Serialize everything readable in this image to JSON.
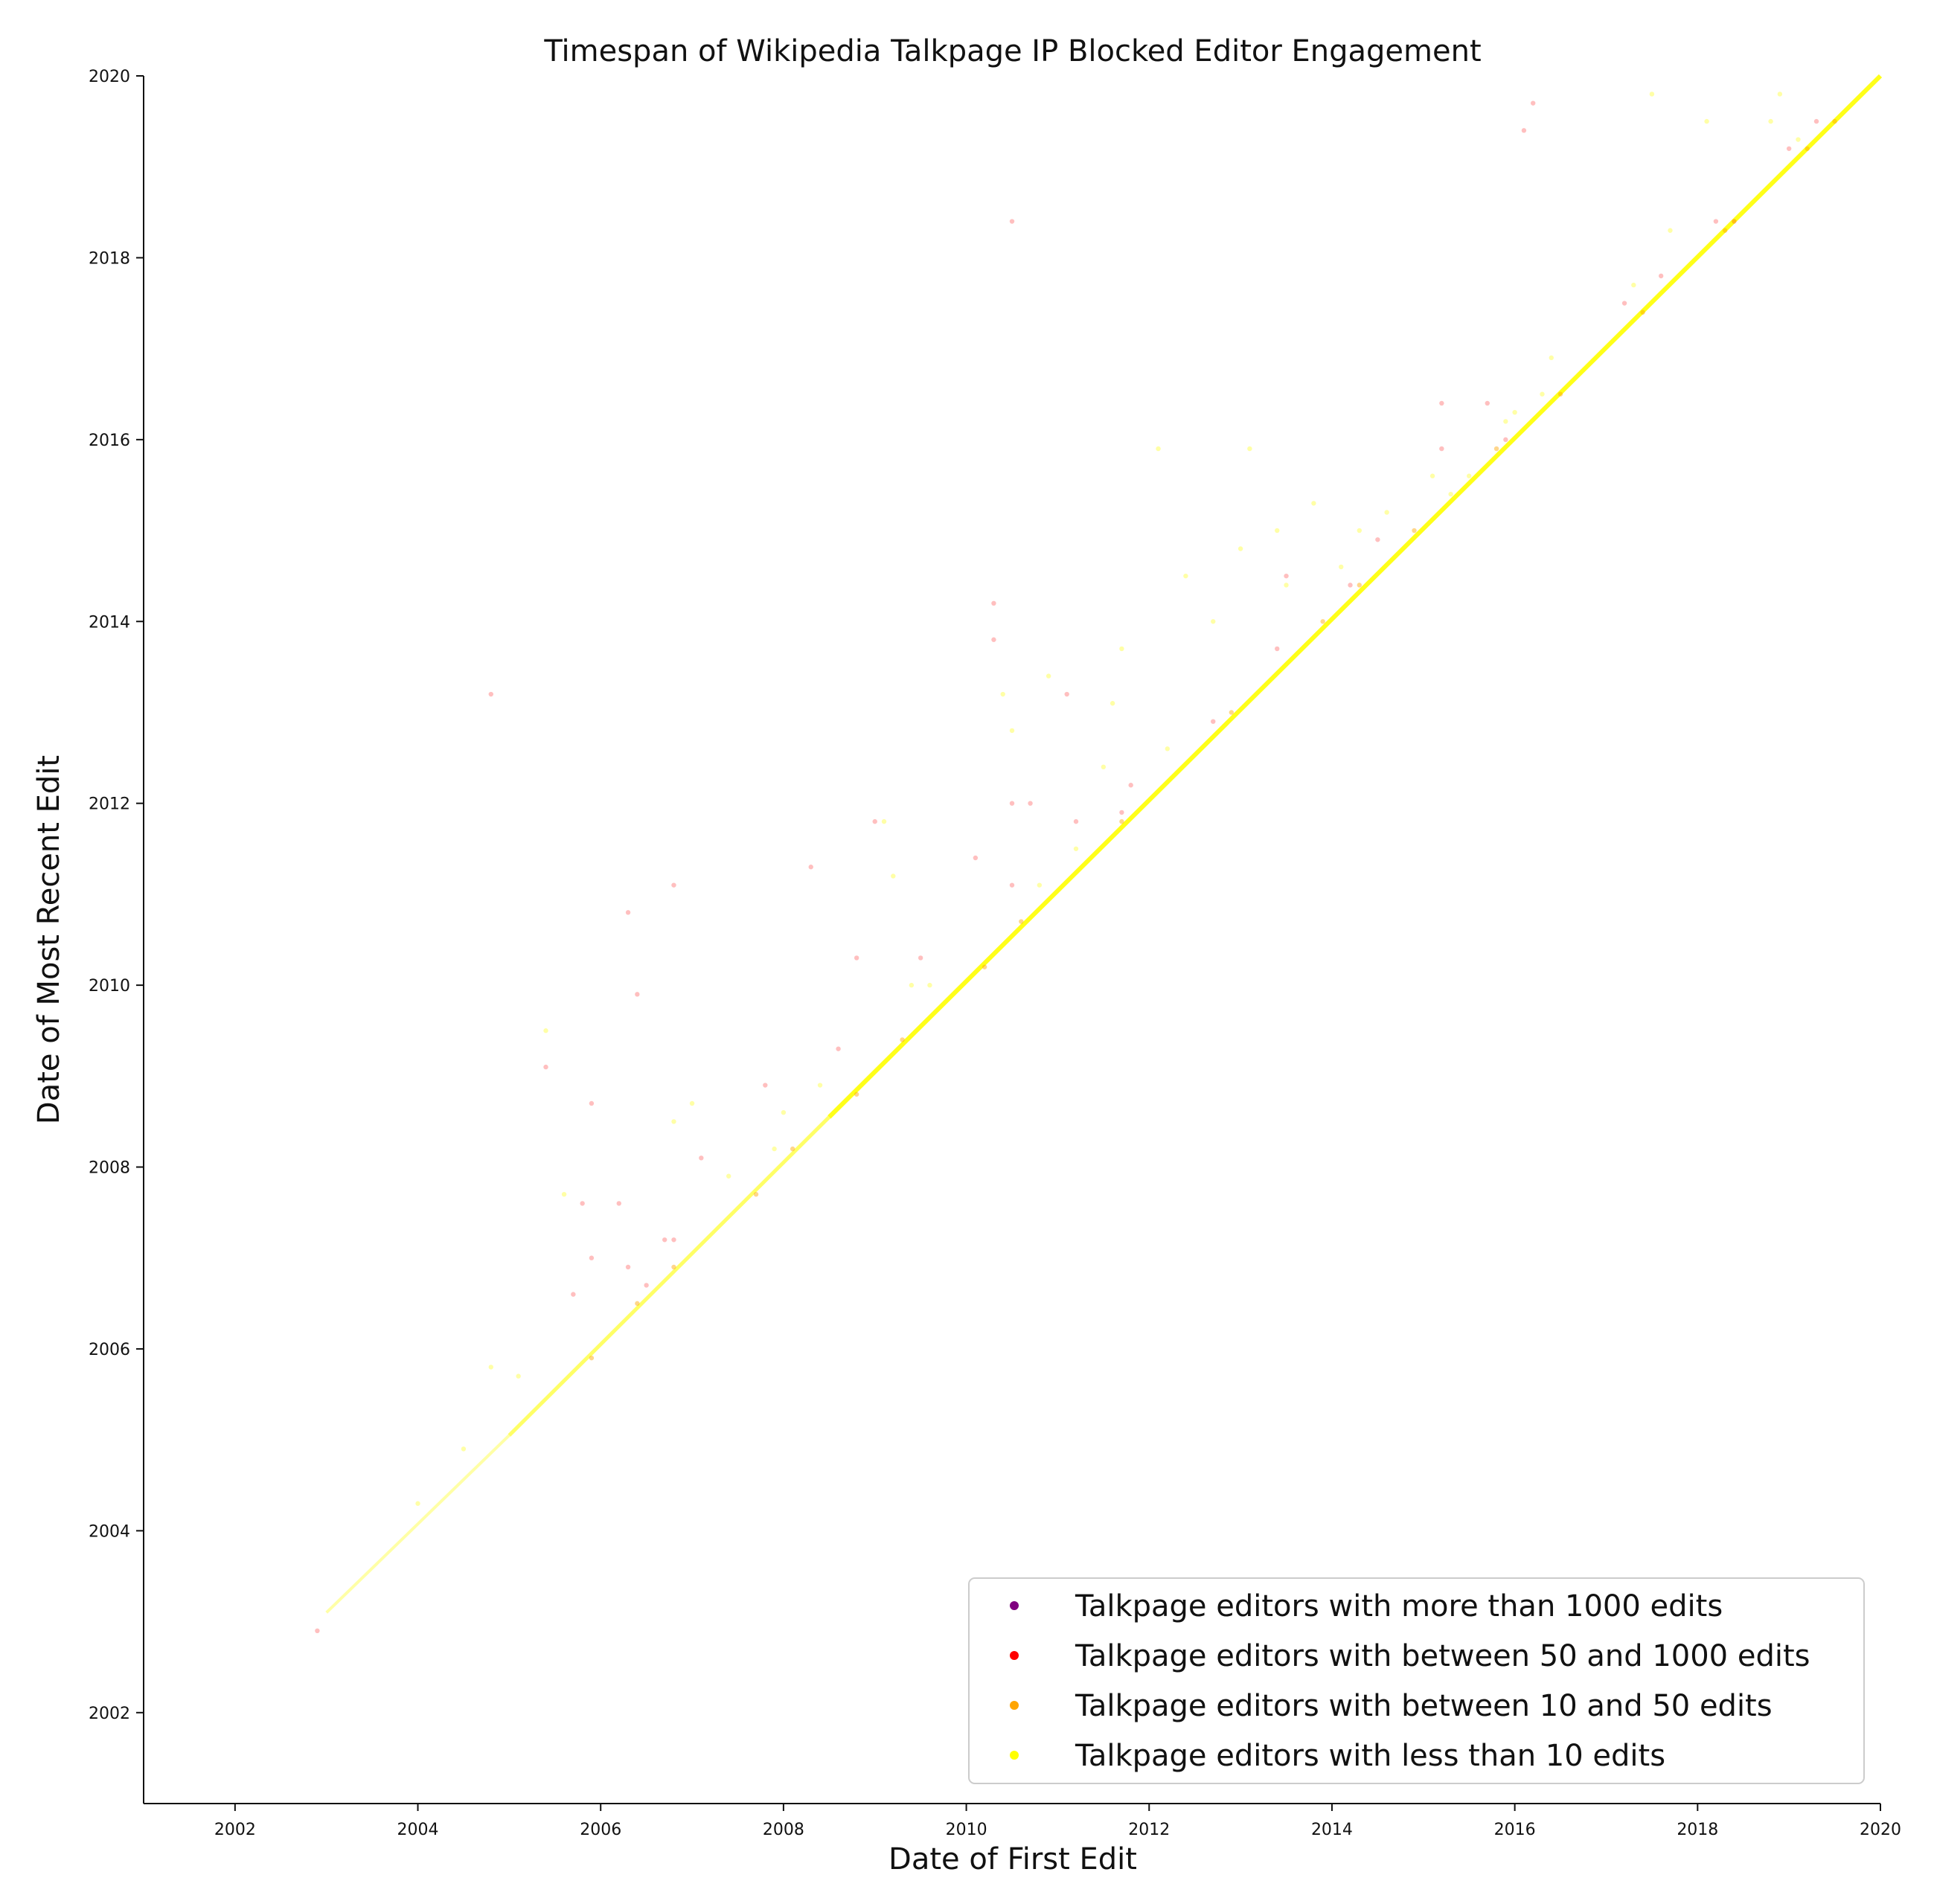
{
  "chart_data": {
    "type": "scatter",
    "title": "Timespan of Wikipedia Talkpage IP Blocked Editor Engagement",
    "xlabel": "Date of First Edit",
    "ylabel": "Date of Most Recent Edit",
    "xlim": [
      2001.0,
      2020.0
    ],
    "ylim": [
      2001.0,
      2020.0
    ],
    "xticks": [
      "2002",
      "2004",
      "2006",
      "2008",
      "2010",
      "2012",
      "2014",
      "2016",
      "2018",
      "2020"
    ],
    "yticks": [
      "2002",
      "2004",
      "2006",
      "2008",
      "2010",
      "2012",
      "2014",
      "2016",
      "2018",
      "2020"
    ],
    "grid": false,
    "legend_position": "lower-right",
    "series": [
      {
        "name": "Talkpage editors with more than 1000 edits",
        "color": "#800080",
        "points": []
      },
      {
        "name": "Talkpage editors with between 50 and 1000 edits",
        "color": "#ff0000",
        "points": [
          [
            2002.9,
            2002.9
          ],
          [
            2004.8,
            2013.2
          ],
          [
            2005.4,
            2009.1
          ],
          [
            2005.8,
            2007.6
          ],
          [
            2005.9,
            2008.7
          ],
          [
            2005.7,
            2006.6
          ],
          [
            2006.3,
            2010.8
          ],
          [
            2006.4,
            2009.9
          ],
          [
            2006.2,
            2007.6
          ],
          [
            2006.5,
            2006.7
          ],
          [
            2006.8,
            2011.1
          ],
          [
            2006.8,
            2007.2
          ],
          [
            2007.1,
            2008.1
          ],
          [
            2007.8,
            2008.9
          ],
          [
            2008.3,
            2011.3
          ],
          [
            2008.8,
            2010.3
          ],
          [
            2008.6,
            2009.3
          ],
          [
            2009.0,
            2011.8
          ],
          [
            2009.5,
            2010.3
          ],
          [
            2010.1,
            2011.4
          ],
          [
            2010.3,
            2014.2
          ],
          [
            2010.3,
            2013.8
          ],
          [
            2010.5,
            2018.4
          ],
          [
            2010.5,
            2012.0
          ],
          [
            2010.7,
            2012.0
          ],
          [
            2010.5,
            2011.1
          ],
          [
            2011.1,
            2013.2
          ],
          [
            2011.2,
            2011.8
          ],
          [
            2011.7,
            2011.9
          ],
          [
            2011.8,
            2012.2
          ],
          [
            2012.7,
            2012.9
          ],
          [
            2013.4,
            2013.7
          ],
          [
            2013.5,
            2014.5
          ],
          [
            2014.2,
            2014.4
          ],
          [
            2015.2,
            2015.9
          ],
          [
            2015.2,
            2016.4
          ],
          [
            2015.7,
            2016.4
          ],
          [
            2016.1,
            2019.4
          ],
          [
            2016.2,
            2019.7
          ],
          [
            2017.2,
            2017.5
          ],
          [
            2017.6,
            2017.8
          ],
          [
            2018.2,
            2018.4
          ],
          [
            2019.3,
            2019.5
          ],
          [
            2006.7,
            2007.2
          ],
          [
            2005.9,
            2007.0
          ],
          [
            2006.3,
            2006.9
          ],
          [
            2014.5,
            2014.9
          ],
          [
            2015.9,
            2016.0
          ],
          [
            2018.4,
            2018.4
          ],
          [
            2019.0,
            2019.2
          ]
        ]
      },
      {
        "name": "Talkpage editors with between 10 and 50 edits",
        "color": "#ffa500",
        "points": [
          [
            2006.4,
            2006.5
          ],
          [
            2006.8,
            2006.9
          ],
          [
            2007.7,
            2007.7
          ],
          [
            2008.1,
            2008.2
          ],
          [
            2009.3,
            2009.4
          ],
          [
            2010.2,
            2010.2
          ],
          [
            2010.6,
            2010.7
          ],
          [
            2011.7,
            2011.8
          ],
          [
            2012.9,
            2013.0
          ],
          [
            2013.9,
            2014.0
          ],
          [
            2014.3,
            2014.4
          ],
          [
            2014.9,
            2015.0
          ],
          [
            2015.8,
            2015.9
          ],
          [
            2016.5,
            2016.5
          ],
          [
            2017.4,
            2017.4
          ],
          [
            2018.3,
            2018.3
          ],
          [
            2019.2,
            2019.2
          ],
          [
            2019.5,
            2019.5
          ],
          [
            2005.9,
            2005.9
          ],
          [
            2008.8,
            2008.8
          ]
        ]
      },
      {
        "name": "Talkpage editors with less than 10 edits",
        "color": "#ffff00",
        "points": [
          [
            2005.4,
            2009.5
          ],
          [
            2005.6,
            2007.7
          ],
          [
            2004.8,
            2005.8
          ],
          [
            2005.1,
            2005.7
          ],
          [
            2006.8,
            2008.5
          ],
          [
            2007.0,
            2008.7
          ],
          [
            2008.0,
            2008.6
          ],
          [
            2009.2,
            2011.2
          ],
          [
            2009.4,
            2010.0
          ],
          [
            2009.1,
            2011.8
          ],
          [
            2010.4,
            2013.2
          ],
          [
            2010.5,
            2012.8
          ],
          [
            2010.9,
            2013.4
          ],
          [
            2011.2,
            2011.5
          ],
          [
            2011.5,
            2012.4
          ],
          [
            2011.6,
            2013.1
          ],
          [
            2011.7,
            2013.7
          ],
          [
            2012.1,
            2015.9
          ],
          [
            2012.4,
            2014.5
          ],
          [
            2012.7,
            2014.0
          ],
          [
            2013.0,
            2014.8
          ],
          [
            2013.1,
            2015.9
          ],
          [
            2013.4,
            2015.0
          ],
          [
            2013.5,
            2014.4
          ],
          [
            2013.8,
            2015.3
          ],
          [
            2014.3,
            2015.0
          ],
          [
            2014.6,
            2015.2
          ],
          [
            2015.1,
            2015.6
          ],
          [
            2015.3,
            2015.4
          ],
          [
            2015.5,
            2015.6
          ],
          [
            2015.9,
            2016.2
          ],
          [
            2016.3,
            2016.5
          ],
          [
            2016.4,
            2016.9
          ],
          [
            2017.3,
            2017.7
          ],
          [
            2017.5,
            2019.8
          ],
          [
            2017.7,
            2018.3
          ],
          [
            2018.1,
            2019.5
          ],
          [
            2018.8,
            2019.5
          ],
          [
            2018.9,
            2019.8
          ],
          [
            2019.1,
            2019.3
          ],
          [
            2007.4,
            2007.9
          ],
          [
            2007.9,
            2008.2
          ],
          [
            2008.4,
            2008.9
          ],
          [
            2009.6,
            2010.0
          ],
          [
            2010.8,
            2011.1
          ],
          [
            2012.2,
            2012.6
          ],
          [
            2014.1,
            2014.6
          ],
          [
            2016.0,
            2016.3
          ],
          [
            2004.0,
            2004.3
          ],
          [
            2004.5,
            2004.9
          ]
        ]
      }
    ],
    "dense_band": {
      "series": "Talkpage editors with less than 10 edits",
      "description_free": true,
      "start": [
        2003.0,
        2003.1
      ],
      "end": [
        2020.0,
        2020.0
      ]
    }
  }
}
